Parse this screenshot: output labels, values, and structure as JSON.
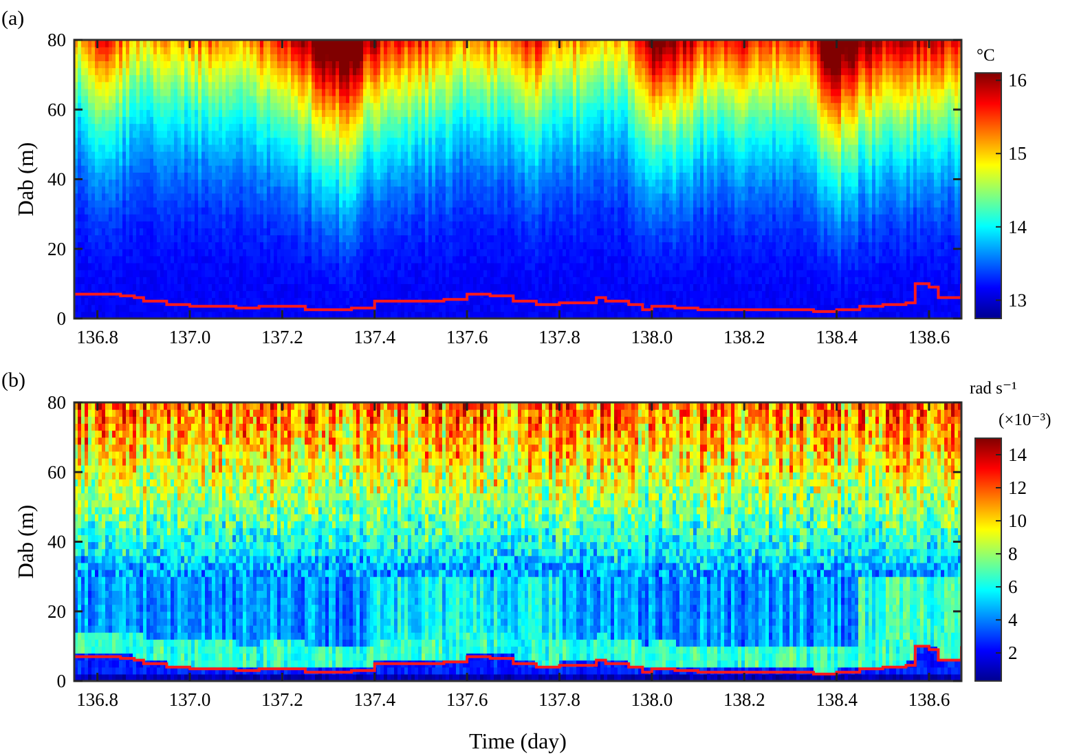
{
  "figure": {
    "xlabel": "Time (day)"
  },
  "chart_data": [
    {
      "type": "heatmap",
      "panel_label": "(a)",
      "ylabel": "Dab (m)",
      "colorbar_unit": "°C",
      "colorbar_multiplier": "",
      "xlim": [
        136.75,
        138.67
      ],
      "ylim": [
        0,
        80
      ],
      "xticks": [
        136.8,
        137.0,
        137.2,
        137.4,
        137.6,
        137.8,
        138.0,
        138.2,
        138.4,
        138.6
      ],
      "yticks": [
        0,
        20,
        40,
        60,
        80
      ],
      "clim": [
        12.75,
        16.1
      ],
      "cticks": [
        13,
        14,
        15,
        16
      ],
      "grid": false,
      "colormap": "jet",
      "surface_scale_profile": [
        {
          "t": 136.76,
          "s": 0.45
        },
        {
          "t": 136.82,
          "s": 0.6
        },
        {
          "t": 136.87,
          "s": 0.5
        },
        {
          "t": 136.9,
          "s": 0.42
        },
        {
          "t": 136.95,
          "s": 0.52
        },
        {
          "t": 137.0,
          "s": 0.5
        },
        {
          "t": 137.05,
          "s": 0.55
        },
        {
          "t": 137.1,
          "s": 0.45
        },
        {
          "t": 137.15,
          "s": 0.58
        },
        {
          "t": 137.2,
          "s": 0.62
        },
        {
          "t": 137.25,
          "s": 0.7
        },
        {
          "t": 137.3,
          "s": 0.95
        },
        {
          "t": 137.35,
          "s": 0.9
        },
        {
          "t": 137.4,
          "s": 0.7
        },
        {
          "t": 137.45,
          "s": 0.6
        },
        {
          "t": 137.5,
          "s": 0.62
        },
        {
          "t": 137.55,
          "s": 0.55
        },
        {
          "t": 137.6,
          "s": 0.5
        },
        {
          "t": 137.65,
          "s": 0.55
        },
        {
          "t": 137.7,
          "s": 0.5
        },
        {
          "t": 137.75,
          "s": 0.65
        },
        {
          "t": 137.8,
          "s": 0.48
        },
        {
          "t": 137.85,
          "s": 0.52
        },
        {
          "t": 137.9,
          "s": 0.45
        },
        {
          "t": 137.95,
          "s": 0.5
        },
        {
          "t": 138.0,
          "s": 0.85
        },
        {
          "t": 138.05,
          "s": 0.75
        },
        {
          "t": 138.1,
          "s": 0.65
        },
        {
          "t": 138.15,
          "s": 0.6
        },
        {
          "t": 138.2,
          "s": 0.62
        },
        {
          "t": 138.25,
          "s": 0.58
        },
        {
          "t": 138.3,
          "s": 0.55
        },
        {
          "t": 138.35,
          "s": 0.65
        },
        {
          "t": 138.38,
          "s": 0.98
        },
        {
          "t": 138.42,
          "s": 0.9
        },
        {
          "t": 138.45,
          "s": 0.8
        },
        {
          "t": 138.5,
          "s": 0.72
        },
        {
          "t": 138.55,
          "s": 0.7
        },
        {
          "t": 138.6,
          "s": 0.68
        },
        {
          "t": 138.67,
          "s": 0.68
        }
      ],
      "series": [
        {
          "type": "line",
          "color": "#ff1a1a",
          "x": [
            136.75,
            136.8,
            136.85,
            136.88,
            136.9,
            136.95,
            137.0,
            137.05,
            137.1,
            137.15,
            137.2,
            137.25,
            137.3,
            137.35,
            137.4,
            137.45,
            137.5,
            137.55,
            137.6,
            137.65,
            137.7,
            137.75,
            137.8,
            137.85,
            137.88,
            137.9,
            137.95,
            137.98,
            138.0,
            138.05,
            138.1,
            138.15,
            138.2,
            138.25,
            138.3,
            138.35,
            138.38,
            138.4,
            138.45,
            138.5,
            138.55,
            138.57,
            138.6,
            138.62,
            138.67
          ],
          "y": [
            7,
            7,
            6.5,
            6,
            5,
            4,
            3.5,
            3.5,
            3,
            3.5,
            3.5,
            2.5,
            2.5,
            3,
            5,
            5,
            5,
            5.5,
            7,
            6.5,
            5,
            4,
            4.5,
            4.5,
            6,
            5,
            4,
            2.5,
            3.5,
            3,
            2.5,
            2.5,
            2.5,
            2.5,
            2.5,
            2,
            2,
            2.5,
            3.5,
            4,
            4.5,
            10,
            9,
            6,
            10
          ]
        }
      ]
    },
    {
      "type": "heatmap",
      "panel_label": "(b)",
      "ylabel": "Dab (m)",
      "colorbar_unit": "rad s⁻¹",
      "colorbar_multiplier": "(×10⁻³)",
      "xlim": [
        136.75,
        138.67
      ],
      "ylim": [
        0,
        80
      ],
      "xticks": [
        136.8,
        137.0,
        137.2,
        137.4,
        137.6,
        137.8,
        138.0,
        138.2,
        138.4,
        138.6
      ],
      "yticks": [
        0,
        20,
        40,
        60,
        80
      ],
      "clim": [
        0.3,
        15
      ],
      "cticks": [
        2,
        4,
        6,
        8,
        10,
        12,
        14
      ],
      "grid": false,
      "colormap": "jet",
      "series": [
        {
          "type": "line",
          "color": "#ff1a1a",
          "x": [
            136.75,
            136.8,
            136.85,
            136.88,
            136.9,
            136.95,
            137.0,
            137.05,
            137.1,
            137.15,
            137.2,
            137.25,
            137.3,
            137.35,
            137.4,
            137.45,
            137.5,
            137.55,
            137.6,
            137.65,
            137.7,
            137.75,
            137.8,
            137.85,
            137.88,
            137.9,
            137.95,
            137.98,
            138.0,
            138.05,
            138.1,
            138.15,
            138.2,
            138.25,
            138.3,
            138.35,
            138.38,
            138.4,
            138.45,
            138.5,
            138.55,
            138.57,
            138.6,
            138.62,
            138.67
          ],
          "y": [
            7,
            7,
            6.5,
            6,
            5,
            4,
            3.5,
            3.5,
            3,
            3.5,
            3.5,
            2.5,
            2.5,
            3,
            5,
            5,
            5,
            5.5,
            7,
            6.5,
            5,
            4,
            4.5,
            4.5,
            6,
            5,
            4,
            2.5,
            3.5,
            3,
            2.5,
            2.5,
            2.5,
            2.5,
            2.5,
            2,
            2,
            2.5,
            3.5,
            4,
            4.5,
            10,
            9,
            6,
            10
          ]
        }
      ]
    }
  ]
}
